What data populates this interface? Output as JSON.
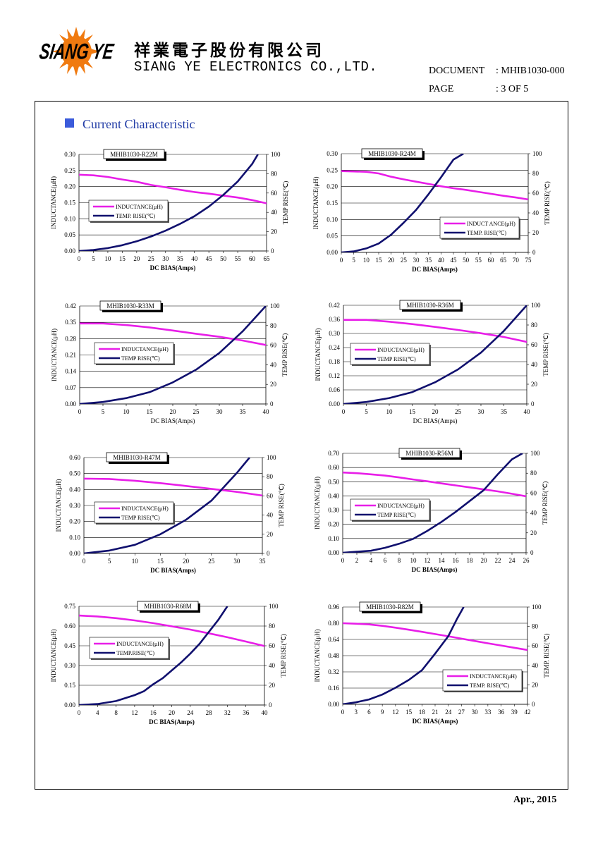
{
  "header": {
    "company_cn": "祥業電子股份有限公司",
    "company_en": "SIANG YE ELECTRONICS CO.,LTD.",
    "logo_text": "SIANG YE",
    "document_label": "DOCUMENT",
    "document_value": ": MHIB1030-000",
    "page_label": "PAGE",
    "page_value": ": 3 OF 5"
  },
  "section": {
    "title": "Current Characteristic"
  },
  "footer": {
    "date": "Apr., 2015"
  },
  "colors": {
    "inductance": "#e81ee8",
    "temp": "#10106e",
    "section": "#1f3aa5"
  },
  "chart_data": [
    {
      "type": "line",
      "title": "MHIB1030-R22M",
      "xlabel": "DC BIAS(Amps)",
      "ylabel": "INDUCTANCE(μH)",
      "y2label": "TEMP RISE(℃)",
      "xlim": [
        0,
        65
      ],
      "xticks": [
        0,
        5,
        10,
        15,
        20,
        25,
        30,
        35,
        40,
        45,
        50,
        55,
        60,
        65
      ],
      "ylim": [
        0,
        0.3
      ],
      "yticks": [
        "0.00",
        "0.05",
        "0.10",
        "0.15",
        "0.20",
        "0.25",
        "0.30"
      ],
      "y2lim": [
        0,
        100
      ],
      "y2ticks": [
        0,
        20,
        40,
        60,
        80,
        100
      ],
      "xlabel_bold": true,
      "legend": {
        "position": "middle-left",
        "inductance": "INDUCTANCE(μH)",
        "temp": "TEMP. RISE(℃)"
      },
      "series": [
        {
          "name": "INDUCTANCE(μH)",
          "axis": "left",
          "x": [
            0,
            5,
            10,
            15,
            20,
            25,
            30,
            35,
            40,
            45,
            50,
            55,
            60,
            65
          ],
          "values": [
            0.237,
            0.235,
            0.23,
            0.222,
            0.215,
            0.205,
            0.198,
            0.19,
            0.183,
            0.178,
            0.172,
            0.166,
            0.158,
            0.148
          ]
        },
        {
          "name": "TEMP. RISE(℃)",
          "axis": "right",
          "x": [
            0,
            5,
            10,
            15,
            20,
            25,
            30,
            35,
            40,
            45,
            50,
            55,
            60,
            62
          ],
          "values": [
            0,
            1,
            3,
            6,
            10,
            15,
            21,
            28,
            36,
            46,
            58,
            72,
            90,
            100
          ]
        }
      ]
    },
    {
      "type": "line",
      "title": "MHIB1030-R24M",
      "xlabel": "DC BIAS(Amps)",
      "ylabel": "INDUCTANCE(μH)",
      "y2label": "TEMP RISE(℃)",
      "xlim": [
        0,
        75
      ],
      "xticks": [
        0,
        5,
        10,
        15,
        20,
        25,
        30,
        35,
        40,
        45,
        50,
        55,
        60,
        65,
        70,
        75
      ],
      "ylim": [
        0,
        0.3
      ],
      "yticks": [
        "0.00",
        "0.05",
        "0.10",
        "0.15",
        "0.20",
        "0.25",
        "0.30"
      ],
      "y2lim": [
        0,
        100
      ],
      "y2ticks": [
        0,
        20,
        40,
        60,
        80,
        100
      ],
      "xlabel_bold": true,
      "legend": {
        "position": "bottom-right",
        "inductance": "INDUCT ANCE(μH)",
        "temp": "TEMP. RISE(℃)"
      },
      "series": [
        {
          "name": "INDUCT ANCE(μH)",
          "axis": "left",
          "x": [
            0,
            5,
            10,
            15,
            20,
            25,
            30,
            35,
            40,
            45,
            50,
            55,
            60,
            65,
            70,
            75
          ],
          "values": [
            0.247,
            0.246,
            0.245,
            0.24,
            0.23,
            0.222,
            0.215,
            0.208,
            0.201,
            0.195,
            0.19,
            0.184,
            0.178,
            0.172,
            0.167,
            0.161
          ]
        },
        {
          "name": "TEMP. RISE(℃)",
          "axis": "right",
          "x": [
            0,
            5,
            10,
            15,
            20,
            25,
            30,
            35,
            40,
            45,
            49
          ],
          "values": [
            0,
            1,
            4,
            9,
            18,
            30,
            43,
            59,
            76,
            94,
            100
          ]
        }
      ]
    },
    {
      "type": "line",
      "title": "MHIB1030-R33M",
      "xlabel": "DC BIAS(Amps)",
      "ylabel": "INDUCTANCE(μH)",
      "y2label": "TEMP RISE(℃)",
      "xlim": [
        0,
        40
      ],
      "xticks": [
        0,
        5,
        10,
        15,
        20,
        25,
        30,
        35,
        40
      ],
      "ylim": [
        0,
        0.42
      ],
      "yticks": [
        "0.00",
        "0.07",
        "0.14",
        "0.21",
        "0.28",
        "0.35",
        "0.42"
      ],
      "y2lim": [
        0,
        100
      ],
      "y2ticks": [
        0,
        20,
        40,
        60,
        80,
        100
      ],
      "xlabel_bold": false,
      "legend": {
        "position": "middle-left",
        "inductance": "INDUCTANCE(μH)",
        "temp": "TEMP RISE(℃)"
      },
      "series": [
        {
          "name": "INDUCTANCE(μH)",
          "axis": "left",
          "x": [
            0,
            5,
            10,
            15,
            20,
            25,
            30,
            35,
            40
          ],
          "values": [
            0.345,
            0.345,
            0.338,
            0.328,
            0.315,
            0.301,
            0.288,
            0.272,
            0.253
          ]
        },
        {
          "name": "TEMP RISE(℃)",
          "axis": "right",
          "x": [
            0,
            5,
            10,
            15,
            20,
            25,
            30,
            35,
            40
          ],
          "values": [
            0,
            2,
            6,
            12,
            22,
            35,
            52,
            74,
            100
          ]
        }
      ]
    },
    {
      "type": "line",
      "title": "MHIB1030-R36M",
      "xlabel": "DC BIAS(Amps)",
      "ylabel": "INDUCTANCE(μH)",
      "y2label": "TEMP RISE(℃)",
      "xlim": [
        0,
        40
      ],
      "xticks": [
        0,
        5,
        10,
        15,
        20,
        25,
        30,
        35,
        40
      ],
      "ylim": [
        0,
        0.42
      ],
      "yticks": [
        "0.00",
        "0.06",
        "0.12",
        "0.18",
        "0.24",
        "0.30",
        "0.36",
        "0.42"
      ],
      "y2lim": [
        0,
        100
      ],
      "y2ticks": [
        0,
        20,
        40,
        60,
        80,
        100
      ],
      "xlabel_bold": false,
      "legend": {
        "position": "middle-left",
        "inductance": "INDUCTANCE(μH)",
        "temp": "TEMP RISE(℃)"
      },
      "series": [
        {
          "name": "INDUCTANCE(μH)",
          "axis": "left",
          "x": [
            0,
            5,
            10,
            15,
            20,
            25,
            30,
            35,
            40
          ],
          "values": [
            0.358,
            0.358,
            0.35,
            0.34,
            0.328,
            0.315,
            0.301,
            0.285,
            0.264
          ]
        },
        {
          "name": "TEMP RISE(℃)",
          "axis": "right",
          "x": [
            0,
            5,
            10,
            15,
            20,
            25,
            30,
            35,
            40
          ],
          "values": [
            0,
            2,
            6,
            12,
            22,
            35,
            52,
            74,
            100
          ]
        }
      ]
    },
    {
      "type": "line",
      "title": "MHIB1030-R47M",
      "xlabel": "DC BIAS(Amps)",
      "ylabel": "INDUCTANCE(μH)",
      "y2label": "TEMP RISE(℃)",
      "xlim": [
        0,
        35
      ],
      "xticks": [
        0,
        5,
        10,
        15,
        20,
        25,
        30,
        35
      ],
      "ylim": [
        0,
        0.6
      ],
      "yticks": [
        "0.00",
        "0.10",
        "0.20",
        "0.30",
        "0.40",
        "0.50",
        "0.60"
      ],
      "y2lim": [
        0,
        100
      ],
      "y2ticks": [
        0,
        20,
        40,
        60,
        80,
        100
      ],
      "xlabel_bold": true,
      "legend": {
        "position": "middle-left",
        "inductance": "INDUCTANCE(μH)",
        "temp": "TEMP RISE(℃)"
      },
      "series": [
        {
          "name": "INDUCTANCE(μH)",
          "axis": "left",
          "x": [
            0,
            5,
            10,
            15,
            20,
            25,
            30,
            35
          ],
          "values": [
            0.468,
            0.466,
            0.455,
            0.44,
            0.422,
            0.404,
            0.385,
            0.362
          ]
        },
        {
          "name": "TEMP RISE(℃)",
          "axis": "right",
          "x": [
            0,
            5,
            10,
            15,
            20,
            25,
            30,
            32.5
          ],
          "values": [
            0,
            3,
            9,
            20,
            35,
            55,
            84,
            100
          ]
        }
      ]
    },
    {
      "type": "line",
      "title": "MHIB1030-R56M",
      "xlabel": "DC BIAS(Amps)",
      "ylabel": "INDUCTANCE(μH)",
      "y2label": "TEMP RISE(℃)",
      "xlim": [
        0,
        26
      ],
      "xticks": [
        0,
        2,
        4,
        6,
        8,
        10,
        12,
        14,
        16,
        18,
        20,
        22,
        24,
        26
      ],
      "ylim": [
        0,
        0.7
      ],
      "yticks": [
        "0.00",
        "0.10",
        "0.20",
        "0.30",
        "0.40",
        "0.50",
        "0.60",
        "0.70"
      ],
      "y2lim": [
        0,
        100
      ],
      "y2ticks": [
        0,
        20,
        40,
        60,
        80,
        100
      ],
      "xlabel_bold": true,
      "legend": {
        "position": "middle-left",
        "inductance": "INDUCTANCE(μH)",
        "temp": "TEMP RISE(℃)"
      },
      "series": [
        {
          "name": "INDUCTANCE(μH)",
          "axis": "left",
          "x": [
            0,
            2,
            4,
            6,
            8,
            10,
            12,
            14,
            16,
            18,
            20,
            22,
            24,
            26
          ],
          "values": [
            0.565,
            0.56,
            0.552,
            0.543,
            0.53,
            0.516,
            0.503,
            0.488,
            0.474,
            0.46,
            0.446,
            0.432,
            0.415,
            0.397
          ]
        },
        {
          "name": "TEMP RISE(℃)",
          "axis": "right",
          "x": [
            0,
            2,
            4,
            6,
            8,
            10,
            12,
            14,
            16,
            18,
            20,
            22,
            24,
            25.5
          ],
          "values": [
            0,
            1,
            2,
            5,
            9,
            14,
            22,
            31,
            41,
            52,
            63,
            79,
            94,
            100
          ]
        }
      ]
    },
    {
      "type": "line",
      "title": "MHIB1030-R68M",
      "xlabel": "DC BIAS(Amps)",
      "ylabel": "INDUCTANCE(μH)",
      "y2label": "TEMP RISE(℃)",
      "xlim": [
        0,
        40
      ],
      "xticks": [
        0,
        4,
        8,
        12,
        16,
        20,
        24,
        28,
        32,
        36,
        40
      ],
      "ylim": [
        0,
        0.75
      ],
      "yticks": [
        "0.00",
        "0.15",
        "0.30",
        "0.45",
        "0.60",
        "0.75"
      ],
      "y2lim": [
        0,
        100
      ],
      "y2ticks": [
        0,
        20,
        40,
        60,
        80,
        100
      ],
      "xlabel_bold": true,
      "legend": {
        "position": "middle-left",
        "inductance": "INDUCTANCE(μH)",
        "temp": "TEMP.RISE(℃)"
      },
      "series": [
        {
          "name": "INDUCTANCE(μH)",
          "axis": "left",
          "x": [
            0,
            4,
            8,
            12,
            16,
            20,
            24,
            28,
            32,
            36,
            40
          ],
          "values": [
            0.68,
            0.673,
            0.66,
            0.643,
            0.622,
            0.598,
            0.573,
            0.545,
            0.515,
            0.482,
            0.448
          ]
        },
        {
          "name": "TEMP.RISE(℃)",
          "axis": "right",
          "x": [
            0,
            4,
            8,
            12,
            14,
            16,
            18,
            20,
            22,
            24,
            26,
            28,
            30,
            32
          ],
          "values": [
            0,
            1,
            4,
            10,
            14,
            21,
            27,
            35,
            43,
            52,
            62,
            74,
            86,
            100
          ]
        }
      ]
    },
    {
      "type": "line",
      "title": "MHIB1030-R82M",
      "xlabel": "DC BIAS(Amps)",
      "ylabel": "INDUCTANCE(μH)",
      "y2label": "TEMP. RISE(℃)",
      "xlim": [
        0,
        42
      ],
      "xticks": [
        0,
        3,
        6,
        9,
        12,
        15,
        18,
        21,
        24,
        27,
        30,
        33,
        36,
        39,
        42
      ],
      "ylim": [
        0,
        0.96
      ],
      "yticks": [
        "0.00",
        "0.16",
        "0.32",
        "0.48",
        "0.64",
        "0.80",
        "0.96"
      ],
      "y2lim": [
        0,
        100
      ],
      "y2ticks": [
        0,
        20,
        40,
        60,
        80,
        100
      ],
      "xlabel_bold": true,
      "legend": {
        "position": "bottom-right",
        "inductance": "INDUCTANCE(μH)",
        "temp": "TEMP. RISE(℃)"
      },
      "series": [
        {
          "name": "INDUCTANCE(μH)",
          "axis": "left",
          "x": [
            0,
            3,
            6,
            9,
            12,
            15,
            18,
            21,
            24,
            27,
            30,
            33,
            36,
            39,
            42
          ],
          "values": [
            0.8,
            0.795,
            0.788,
            0.774,
            0.756,
            0.736,
            0.715,
            0.693,
            0.671,
            0.648,
            0.625,
            0.602,
            0.58,
            0.558,
            0.536
          ]
        },
        {
          "name": "TEMP. RISE(℃)",
          "axis": "right",
          "x": [
            0,
            3,
            6,
            9,
            12,
            15,
            18,
            21,
            24,
            26,
            27.5
          ],
          "values": [
            0,
            2,
            5,
            10,
            17,
            25,
            35,
            52,
            70,
            88,
            100
          ]
        }
      ]
    }
  ]
}
